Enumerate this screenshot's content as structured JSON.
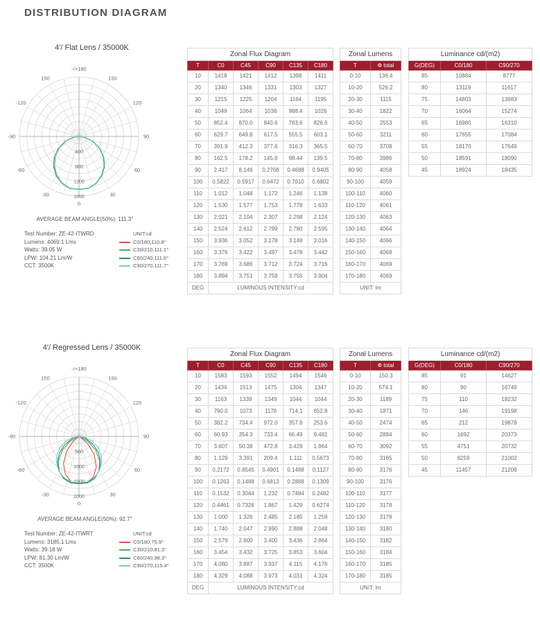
{
  "page_title": "DISTRIBUTION DIAGRAM",
  "colors": {
    "header_red": "#9c1f2e",
    "grid": "#c9c9c9",
    "axis": "#9b9b9b"
  },
  "polar_angle_labels": [
    {
      "text": "-/+180",
      "gamma": 180,
      "side": "C"
    },
    {
      "text": "150",
      "gamma": 150,
      "side": "R"
    },
    {
      "text": "150",
      "gamma": 150,
      "side": "L"
    },
    {
      "text": "120",
      "gamma": 120,
      "side": "R"
    },
    {
      "text": "-120",
      "gamma": 120,
      "side": "L"
    },
    {
      "text": "90",
      "gamma": 90,
      "side": "R"
    },
    {
      "text": "-90",
      "gamma": 90,
      "side": "L"
    },
    {
      "text": "60",
      "gamma": 60,
      "side": "R"
    },
    {
      "text": "-60",
      "gamma": 60,
      "side": "L"
    },
    {
      "text": "30",
      "gamma": 30,
      "side": "R"
    },
    {
      "text": "-30",
      "gamma": 30,
      "side": "L"
    },
    {
      "text": "0",
      "gamma": 0,
      "side": "C"
    }
  ],
  "sections": [
    {
      "subtitle": "4'/ Flat Lens / 35000K",
      "beam_angle": "AVERAGE BEAM ANGLE(50%): 111.3°",
      "test_info": [
        "Test Number: ZE-42-ITWRD",
        "Lumens: 4069.1 Lms",
        "Watts: 39.05 W",
        "LPW: 104.21 Lm/W",
        "CCT: 3500K"
      ],
      "legend": {
        "unit": "UNIT:cd",
        "entries": [
          {
            "label": "C0/180,110.8°",
            "color": "#d9534f"
          },
          {
            "label": "C30/210,111.1°",
            "color": "#5aab5a"
          },
          {
            "label": "C60/240,111.6°",
            "color": "#2e8b6e"
          },
          {
            "label": "C90/270,111.7°",
            "color": "#79c9de"
          }
        ]
      },
      "polar": {
        "ring_values": [
          400,
          800,
          1200,
          1600
        ]
      },
      "zonal_flux": {
        "title": "Zonal Flux Diagram",
        "headers": [
          "T",
          "C0",
          "C45",
          "C90",
          "C135",
          "C180"
        ],
        "rows": [
          [
            "10",
            "1418",
            "1421",
            "1412",
            "1398",
            "1411"
          ],
          [
            "20",
            "1340",
            "1346",
            "1331",
            "1303",
            "1327"
          ],
          [
            "30",
            "1215",
            "1225",
            "1204",
            "1164",
            "1195"
          ],
          [
            "40",
            "1049",
            "1064",
            "1038",
            "988.4",
            "1026"
          ],
          [
            "50",
            "852.4",
            "870.0",
            "840.6",
            "783.6",
            "826.6"
          ],
          [
            "60",
            "629.7",
            "649.8",
            "617.5",
            "555.5",
            "603.1"
          ],
          [
            "70",
            "391.9",
            "412.3",
            "377.6",
            "316.3",
            "365.5"
          ],
          [
            "80",
            "162.5",
            "178.2",
            "145.8",
            "98.44",
            "139.5"
          ],
          [
            "90",
            "2.417",
            "8.146",
            "0.2768",
            "0.4688",
            "0.9405"
          ],
          [
            "100",
            "0.5822",
            "0.5917",
            "0.6472",
            "0.7610",
            "0.6802"
          ],
          [
            "110",
            "1.012",
            "1.048",
            "1.172",
            "1.246",
            "1.138"
          ],
          [
            "120",
            "1.530",
            "1.577",
            "1.753",
            "1.778",
            "1.633"
          ],
          [
            "130",
            "2.021",
            "2.104",
            "2.307",
            "2.298",
            "2.124"
          ],
          [
            "140",
            "2.524",
            "2.612",
            "2.799",
            "2.780",
            "2.595"
          ],
          [
            "150",
            "3.936",
            "3.052",
            "3.178",
            "3.148",
            "3.016"
          ],
          [
            "160",
            "3.376",
            "3.422",
            "3.497",
            "3.478",
            "3.442"
          ],
          [
            "170",
            "3.769",
            "3.686",
            "3.712",
            "3.724",
            "3.716"
          ],
          [
            "180",
            "3.894",
            "3.751",
            "3.759",
            "3.755",
            "3.904"
          ]
        ],
        "footer_left": "DEG",
        "footer_right": "LUMINOUS INTENSITY:cd"
      },
      "zonal_lumens": {
        "title": "Zonal Lumens",
        "headers": [
          "T",
          "Φ total"
        ],
        "rows": [
          [
            "0-10",
            "136.4"
          ],
          [
            "10-20",
            "526.2"
          ],
          [
            "20-30",
            "1115"
          ],
          [
            "30-40",
            "1822"
          ],
          [
            "40-50",
            "2553"
          ],
          [
            "50-60",
            "3211"
          ],
          [
            "60-70",
            "3708"
          ],
          [
            "70-80",
            "3986"
          ],
          [
            "80-90",
            "4058"
          ],
          [
            "90-100",
            "4059"
          ],
          [
            "100-110",
            "4060"
          ],
          [
            "110-120",
            "4061"
          ],
          [
            "120-130",
            "4063"
          ],
          [
            "130-140",
            "4064"
          ],
          [
            "140-150",
            "4066"
          ],
          [
            "150-160",
            "4068"
          ],
          [
            "160-170",
            "4069"
          ],
          [
            "170-180",
            "4069"
          ]
        ],
        "footer": "UNIT: lm"
      },
      "luminance": {
        "title": "Luminance cd/(m2)",
        "headers": [
          "G(DEG)",
          "C0/180",
          "C90/270"
        ],
        "rows": [
          [
            "85",
            "10884",
            "8777"
          ],
          [
            "80",
            "13119",
            "11617"
          ],
          [
            "75",
            "14803",
            "13683"
          ],
          [
            "70",
            "16064",
            "15274"
          ],
          [
            "65",
            "16980",
            "16310"
          ],
          [
            "60",
            "17655",
            "17084"
          ],
          [
            "55",
            "18170",
            "17649"
          ],
          [
            "50",
            "18591",
            "18090"
          ],
          [
            "45",
            "18924",
            "18435"
          ]
        ]
      }
    },
    {
      "subtitle": "4'/ Regressed Lens / 35000K",
      "beam_angle": "AVERAGE BEAM ANGLE(50%): 92.7°",
      "test_info": [
        "Test Number: ZE-42-ITWRT",
        "Lumens: 3185.1 Lms",
        "Watts: 39.18 W",
        "LPW: 81.30 Lm/W",
        "CCT: 3500K"
      ],
      "legend": {
        "unit": "UNIT:cd",
        "entries": [
          {
            "label": "C0/180,75.9°",
            "color": "#d9534f"
          },
          {
            "label": "C30/210,81.3°",
            "color": "#5aab5a"
          },
          {
            "label": "C60/240,98.3°",
            "color": "#2e8b6e"
          },
          {
            "label": "C90/270,115.4°",
            "color": "#79c9de"
          }
        ]
      },
      "polar": {
        "ring_values": [
          500,
          1000,
          1500,
          2000
        ]
      },
      "zonal_flux": {
        "title": "Zonal Flux Diagram",
        "headers": [
          "T",
          "C0",
          "C45",
          "C90",
          "C135",
          "C180"
        ],
        "rows": [
          [
            "10",
            "1583",
            "1593",
            "1552",
            "1494",
            "1546"
          ],
          [
            "20",
            "1434",
            "1513",
            "1475",
            "1304",
            "1347"
          ],
          [
            "30",
            "1163",
            "1339",
            "1349",
            "1044",
            "1044"
          ],
          [
            "40",
            "790.0",
            "1073",
            "1178",
            "714.1",
            "652.8"
          ],
          [
            "50",
            "382.2",
            "734.4",
            "972.0",
            "357.8",
            "253.6"
          ],
          [
            "60",
            "60.93",
            "354.3",
            "733.4",
            "66.49",
            "9.481"
          ],
          [
            "70",
            "3.607",
            "50.38",
            "472.8",
            "3.429",
            "1.964"
          ],
          [
            "80",
            "1.129",
            "3.391",
            "209.4",
            "1.111",
            "0.5673"
          ],
          [
            "90",
            "0.2172",
            "0.8545",
            "0.4901",
            "0.1488",
            "0.1127"
          ],
          [
            "100",
            "0.1263",
            "0.1488",
            "0.6813",
            "0.2888",
            "0.1309"
          ],
          [
            "110",
            "0.1532",
            "0.3044",
            "1.232",
            "0.7484",
            "0.2482"
          ],
          [
            "120",
            "0.4461",
            "0.7326",
            "1.867",
            "1.429",
            "0.6274"
          ],
          [
            "130",
            "1.000",
            "1.326",
            "2.485",
            "2.185",
            "1.259"
          ],
          [
            "140",
            "1.740",
            "2.047",
            "2.990",
            "2.888",
            "2.048"
          ],
          [
            "150",
            "2.579",
            "2.800",
            "3.400",
            "3.436",
            "2.864"
          ],
          [
            "160",
            "3.454",
            "3.432",
            "3.725",
            "3.853",
            "3.604"
          ],
          [
            "170",
            "4.080",
            "3.887",
            "3.937",
            "4.115",
            "4.176"
          ],
          [
            "180",
            "4.329",
            "4.088",
            "3.973",
            "4.031",
            "4.324"
          ]
        ],
        "footer_left": "DEG",
        "footer_right": "LUMINOUS INTENSITY:cd"
      },
      "zonal_lumens": {
        "title": "Zonal Lumens",
        "headers": [
          "T",
          "Φ total"
        ],
        "rows": [
          [
            "0-10",
            "150.3"
          ],
          [
            "10-20",
            "574.1"
          ],
          [
            "20-30",
            "1189"
          ],
          [
            "30-40",
            "1871"
          ],
          [
            "40-50",
            "2474"
          ],
          [
            "50-60",
            "2884"
          ],
          [
            "60-70",
            "3092"
          ],
          [
            "70-80",
            "3165"
          ],
          [
            "80-90",
            "3176"
          ],
          [
            "90-100",
            "3176"
          ],
          [
            "100-110",
            "3177"
          ],
          [
            "110-120",
            "3178"
          ],
          [
            "120-130",
            "3179"
          ],
          [
            "130-140",
            "3180"
          ],
          [
            "140-150",
            "3182"
          ],
          [
            "150-160",
            "3184"
          ],
          [
            "160-170",
            "3185"
          ],
          [
            "170-180",
            "3185"
          ]
        ],
        "footer": "UNIT: lm"
      },
      "luminance": {
        "title": "Luminance cd/(m2)",
        "headers": [
          "G(DEG)",
          "C0/180",
          "C90/270"
        ],
        "rows": [
          [
            "85",
            "91",
            "14627"
          ],
          [
            "80",
            "90",
            "16749"
          ],
          [
            "75",
            "110",
            "18232"
          ],
          [
            "70",
            "146",
            "19198"
          ],
          [
            "65",
            "212",
            "19878"
          ],
          [
            "60",
            "1692",
            "20373"
          ],
          [
            "55",
            "4751",
            "20732"
          ],
          [
            "50",
            "8259",
            "21002"
          ],
          [
            "45",
            "11457",
            "21208"
          ]
        ]
      }
    }
  ]
}
